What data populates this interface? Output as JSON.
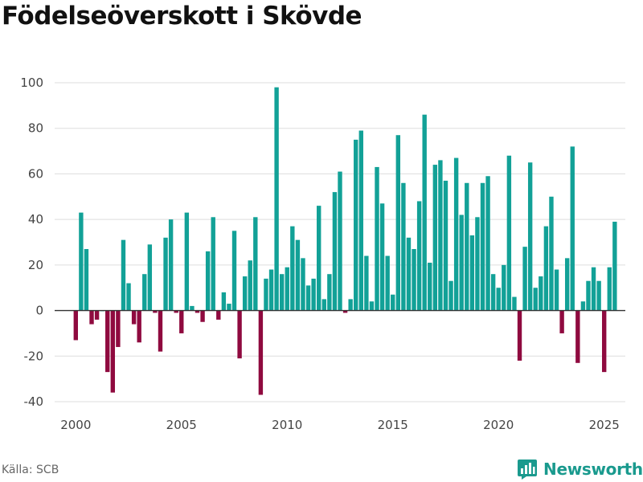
{
  "chart_data": {
    "type": "bar",
    "title": "Födelseöverskott i Skövde",
    "source": "Källa: SCB",
    "brand": "Newsworthy",
    "xlabel": "",
    "ylabel": "",
    "xlim": [
      1999.0,
      2026.0
    ],
    "ylim": [
      -40,
      100
    ],
    "yticks": [
      -40,
      -20,
      0,
      20,
      40,
      60,
      80,
      100
    ],
    "xticks": [
      2000,
      2005,
      2010,
      2015,
      2020,
      2025
    ],
    "grid": true,
    "positive_color": "#12a197",
    "negative_color": "#8f0a3f",
    "start_year": 2000,
    "periods_per_year": 4,
    "values": [
      -13,
      43,
      27,
      -6,
      -4,
      0,
      -27,
      -36,
      -16,
      31,
      12,
      -6,
      -14,
      16,
      29,
      -1,
      -18,
      32,
      40,
      -1,
      -10,
      43,
      2,
      -1,
      -5,
      26,
      41,
      -4,
      8,
      3,
      35,
      -21,
      15,
      22,
      41,
      -37,
      14,
      18,
      98,
      16,
      19,
      37,
      31,
      23,
      11,
      14,
      46,
      5,
      16,
      52,
      61,
      -1,
      5,
      75,
      79,
      24,
      4,
      63,
      47,
      24,
      7,
      77,
      56,
      32,
      27,
      48,
      86,
      21,
      64,
      66,
      57,
      13,
      67,
      42,
      56,
      33,
      41,
      56,
      59,
      16,
      10,
      20,
      68,
      6,
      -22,
      28,
      65,
      10,
      15,
      37,
      50,
      18,
      -10,
      23,
      72,
      -23,
      4,
      13,
      19,
      13,
      -27,
      19,
      39
    ]
  }
}
